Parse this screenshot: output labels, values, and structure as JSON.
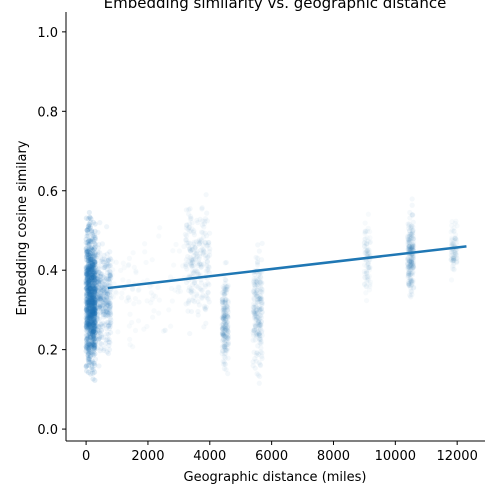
{
  "chart_data": {
    "type": "scatter",
    "title": "Embedding similarity vs. geographic distance",
    "xlabel": "Geographic distance (miles)",
    "ylabel": "Embedding cosine similary",
    "xlim": [
      -650,
      12900
    ],
    "ylim": [
      -0.03,
      1.05
    ],
    "xticks": [
      0,
      2000,
      4000,
      6000,
      8000,
      10000,
      12000
    ],
    "yticks": [
      0.0,
      0.2,
      0.4,
      0.6,
      0.8,
      1.0
    ],
    "grid": false,
    "point_color": "#1f77b4",
    "line_color": "#1f77b4",
    "clusters": [
      {
        "x": [
          0,
          300
        ],
        "y_center": 0.33,
        "y_spread": 0.2,
        "density": "very-high"
      },
      {
        "x": [
          300,
          800
        ],
        "y_center": 0.33,
        "y_spread": 0.16,
        "density": "high"
      },
      {
        "x": [
          800,
          3200
        ],
        "y_center": 0.36,
        "y_spread": 0.15,
        "density": "low"
      },
      {
        "x": [
          3200,
          4000
        ],
        "y_center": 0.42,
        "y_spread": 0.17,
        "density": "medium"
      },
      {
        "x": [
          4400,
          4600
        ],
        "y_center": 0.27,
        "y_spread": 0.13,
        "density": "medium"
      },
      {
        "x": [
          5400,
          5700
        ],
        "y_center": 0.3,
        "y_spread": 0.18,
        "density": "medium"
      },
      {
        "x": [
          9000,
          9200
        ],
        "y_center": 0.43,
        "y_spread": 0.1,
        "density": "low"
      },
      {
        "x": [
          10400,
          10600
        ],
        "y_center": 0.44,
        "y_spread": 0.12,
        "density": "medium"
      },
      {
        "x": [
          11800,
          12000
        ],
        "y_center": 0.45,
        "y_spread": 0.08,
        "density": "low"
      }
    ],
    "series": [
      {
        "type": "regression-line",
        "x": [
          700,
          12300
        ],
        "y": [
          0.355,
          0.46
        ]
      }
    ]
  }
}
